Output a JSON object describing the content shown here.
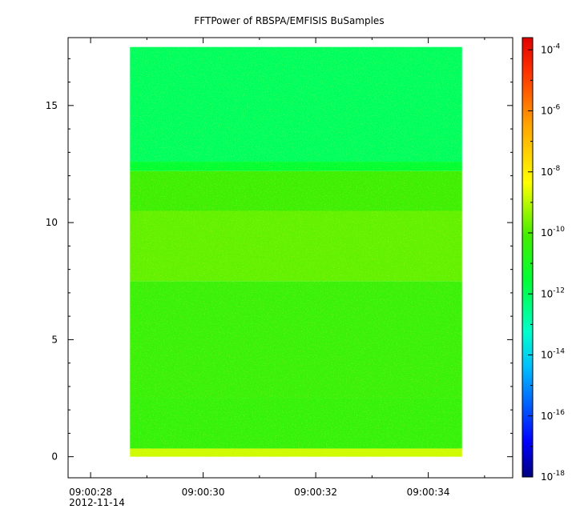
{
  "chart_data": {
    "type": "heatmap",
    "title": "FFTPower of RBSPA/EMFISIS  BuSamples",
    "xlabel": "",
    "ylabel": "",
    "x_axis": {
      "range": [
        "09:00:27.6",
        "09:00:35.5"
      ],
      "major_ticks": [
        {
          "label": "09:00:28",
          "sublabel": "2012-11-14"
        },
        {
          "label": "09:00:30",
          "sublabel": ""
        },
        {
          "label": "09:00:32",
          "sublabel": ""
        },
        {
          "label": "09:00:34",
          "sublabel": ""
        }
      ]
    },
    "y_axis": {
      "range": [
        -0.9,
        17.9
      ],
      "major_ticks": [
        0,
        5,
        10,
        15
      ],
      "major_tick_labels": [
        "0",
        "5",
        "10",
        "15"
      ]
    },
    "data_extent": {
      "x": [
        "09:00:28.7",
        "09:00:34.6"
      ],
      "y": [
        0,
        17.5
      ]
    },
    "bands": [
      {
        "y": [
          0,
          0.35
        ],
        "log_power": -8.8
      },
      {
        "y": [
          0.35,
          2.5
        ],
        "log_power": -10.4
      },
      {
        "y": [
          2.5,
          7.5
        ],
        "log_power": -10.3
      },
      {
        "y": [
          7.5,
          10.5
        ],
        "log_power": -9.8
      },
      {
        "y": [
          10.5,
          12.2
        ],
        "log_power": -10.2
      },
      {
        "y": [
          12.2,
          12.6
        ],
        "log_power": -11.5
      },
      {
        "y": [
          12.6,
          17.5
        ],
        "log_power": -12.0
      }
    ],
    "colorbar": {
      "scale": "log",
      "range": [
        -18,
        -3.6
      ],
      "tick_exponents": [
        -4,
        -6,
        -8,
        -10,
        -12,
        -14,
        -16,
        -18
      ],
      "tick_base": "10"
    },
    "grid": false,
    "legend": "none"
  }
}
